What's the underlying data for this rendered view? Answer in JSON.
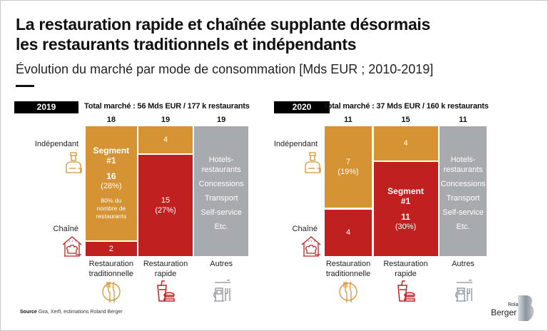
{
  "title_line1": "La restauration rapide et chaînée supplante désormais",
  "title_line2": "les restaurants traditionnels et indépendants",
  "subtitle": "Évolution du marché par mode de consommation [Mds EUR ; 2010-2019]",
  "row_labels": {
    "independant": "Indépendant",
    "chaine": "Chaîné"
  },
  "colors": {
    "independant": "#D59334",
    "chaine": "#C02020",
    "autres": "#A7AAAE"
  },
  "source_label": "Source",
  "source_text": "Gira, Xerfi, estimations Roland Berger",
  "logo_text": {
    "line1": "Roland",
    "line2": "Berger"
  },
  "chart_data": [
    {
      "type": "mekko",
      "year": "2019",
      "total": "Total marché : 56 Mds EUR / 177 k restaurants",
      "columns": [
        {
          "label": [
            "Restauration",
            "traditionnelle"
          ],
          "total": 18,
          "icon": "plate-cutlery-icon",
          "segments": [
            {
              "type": "independant",
              "value": 16,
              "lines": [
                {
                  "t": "Segment",
                  "c": "b"
                },
                {
                  "t": "#1",
                  "c": "b"
                },
                {
                  "t": "",
                  "c": "gap"
                },
                {
                  "t": "16",
                  "c": "b"
                },
                {
                  "t": "(28%)",
                  "c": ""
                },
                {
                  "t": "80% du",
                  "c": "s"
                },
                {
                  "t": "nombre de",
                  "c": "sx"
                },
                {
                  "t": "restaurants",
                  "c": "sx"
                }
              ]
            },
            {
              "type": "chaine",
              "value": 2,
              "lines": [
                {
                  "t": "2",
                  "c": ""
                }
              ]
            }
          ]
        },
        {
          "label": [
            "Restauration",
            "rapide"
          ],
          "total": 19,
          "icon": "fast-food-icon",
          "segments": [
            {
              "type": "independant",
              "value": 4,
              "lines": [
                {
                  "t": "4",
                  "c": ""
                }
              ]
            },
            {
              "type": "chaine",
              "value": 15,
              "lines": [
                {
                  "t": "15",
                  "c": ""
                },
                {
                  "t": "(27%)",
                  "c": ""
                }
              ]
            }
          ]
        },
        {
          "label": [
            "Autres"
          ],
          "total": 19,
          "icon": "gas-station-icon",
          "segments": [
            {
              "type": "autres",
              "value": 19,
              "lines": [
                {
                  "t": "Hotels-",
                  "c": "g"
                },
                {
                  "t": "restaurants",
                  "c": ""
                },
                {
                  "t": "Concessions",
                  "c": "g"
                },
                {
                  "t": "Transport",
                  "c": "g"
                },
                {
                  "t": "Self-service",
                  "c": "g"
                },
                {
                  "t": "Etc.",
                  "c": "g"
                }
              ]
            }
          ]
        }
      ]
    },
    {
      "type": "mekko",
      "year": "2020",
      "total": "Total marché : 37 Mds EUR / 160 k restaurants",
      "columns": [
        {
          "label": [
            "Restauration",
            "traditionnelle"
          ],
          "total": 11,
          "icon": "plate-cutlery-icon",
          "segments": [
            {
              "type": "independant",
              "value": 7,
              "lines": [
                {
                  "t": "7",
                  "c": ""
                },
                {
                  "t": "(19%)",
                  "c": ""
                }
              ]
            },
            {
              "type": "chaine",
              "value": 4,
              "lines": [
                {
                  "t": "4",
                  "c": ""
                }
              ]
            }
          ]
        },
        {
          "label": [
            "Restauration",
            "rapide"
          ],
          "total": 15,
          "icon": "fast-food-icon",
          "segments": [
            {
              "type": "independant",
              "value": 4,
              "lines": [
                {
                  "t": "4",
                  "c": ""
                }
              ]
            },
            {
              "type": "chaine",
              "value": 11,
              "lines": [
                {
                  "t": "Segment",
                  "c": "b"
                },
                {
                  "t": "#1",
                  "c": "b"
                },
                {
                  "t": "",
                  "c": "gap"
                },
                {
                  "t": "11",
                  "c": "b"
                },
                {
                  "t": "(30%)",
                  "c": ""
                }
              ]
            }
          ]
        },
        {
          "label": [
            "Autres"
          ],
          "total": 11,
          "icon": "gas-station-icon",
          "segments": [
            {
              "type": "autres",
              "value": 11,
              "lines": [
                {
                  "t": "Hotels-",
                  "c": "g"
                },
                {
                  "t": "restaurants",
                  "c": ""
                },
                {
                  "t": "Concessions",
                  "c": "g"
                },
                {
                  "t": "Transport",
                  "c": "g"
                },
                {
                  "t": "Self-service",
                  "c": "g"
                },
                {
                  "t": "Etc.",
                  "c": "g"
                }
              ]
            }
          ]
        }
      ]
    }
  ]
}
